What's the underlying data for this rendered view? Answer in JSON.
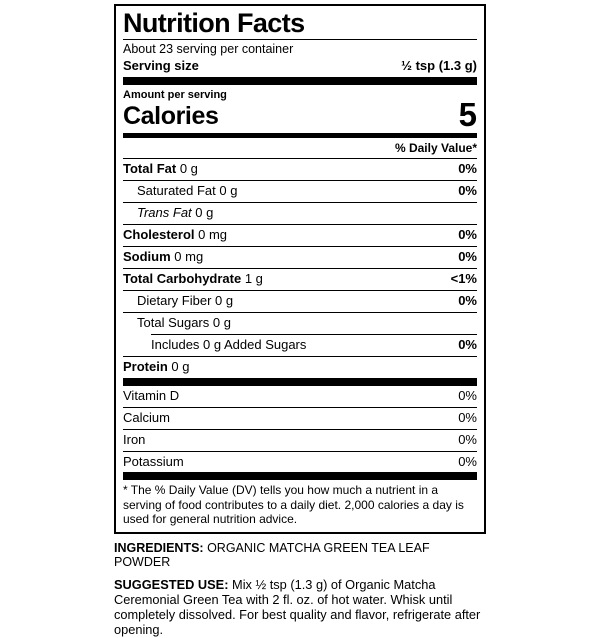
{
  "colors": {
    "ink": "#000000",
    "background": "#ffffff"
  },
  "label": {
    "title": "Nutrition Facts",
    "servings_per_container": "About 23 serving per container",
    "serving_size_label": "Serving size",
    "serving_size_value": "½ tsp (1.3 g)",
    "amount_per_serving": "Amount per serving",
    "calories_label": "Calories",
    "calories_value": "5",
    "daily_value_header": "% Daily Value*",
    "rows": [
      {
        "bold": "Total Fat",
        "text": "0 g",
        "dv": "0%",
        "indent": 0
      },
      {
        "text": "Saturated Fat 0 g",
        "dv": "0%",
        "indent": 1
      },
      {
        "italic": "Trans Fat",
        "text": "0 g",
        "dv": "",
        "indent": 1
      },
      {
        "bold": "Cholesterol",
        "text": "0 mg",
        "dv": "0%",
        "indent": 0
      },
      {
        "bold": "Sodium",
        "text": "0 mg",
        "dv": "0%",
        "indent": 0
      },
      {
        "bold": "Total Carbohydrate",
        "text": "1 g",
        "dv": "<1%",
        "indent": 0
      },
      {
        "text": "Dietary Fiber 0 g",
        "dv": "0%",
        "indent": 1
      },
      {
        "text": "Total Sugars 0 g",
        "dv": "",
        "indent": 1
      },
      {
        "text": "Includes 0 g Added Sugars",
        "dv": "0%",
        "indent": 2,
        "indented_rule": true
      },
      {
        "bold": "Protein",
        "text": "0 g",
        "dv": "",
        "indent": 0
      }
    ],
    "vitamins": [
      {
        "label": "Vitamin D",
        "dv": "0%"
      },
      {
        "label": "Calcium",
        "dv": "0%"
      },
      {
        "label": "Iron",
        "dv": "0%"
      },
      {
        "label": "Potassium",
        "dv": "0%"
      }
    ],
    "footnote": "* The % Daily Value (DV) tells you how much a nutrient in a serving of food contributes to a daily diet. 2,000 calories a day is used for general nutrition advice."
  },
  "below": {
    "ingredients_label": "INGREDIENTS:",
    "ingredients_text": "ORGANIC MATCHA GREEN TEA LEAF POWDER",
    "suggested_use_label": "SUGGESTED USE:",
    "suggested_use_text": "Mix ½ tsp (1.3 g) of Organic Matcha Ceremonial Green Tea with 2 fl. oz. of hot water. Whisk until completely dissolved. For best quality and flavor, refrigerate after opening."
  }
}
